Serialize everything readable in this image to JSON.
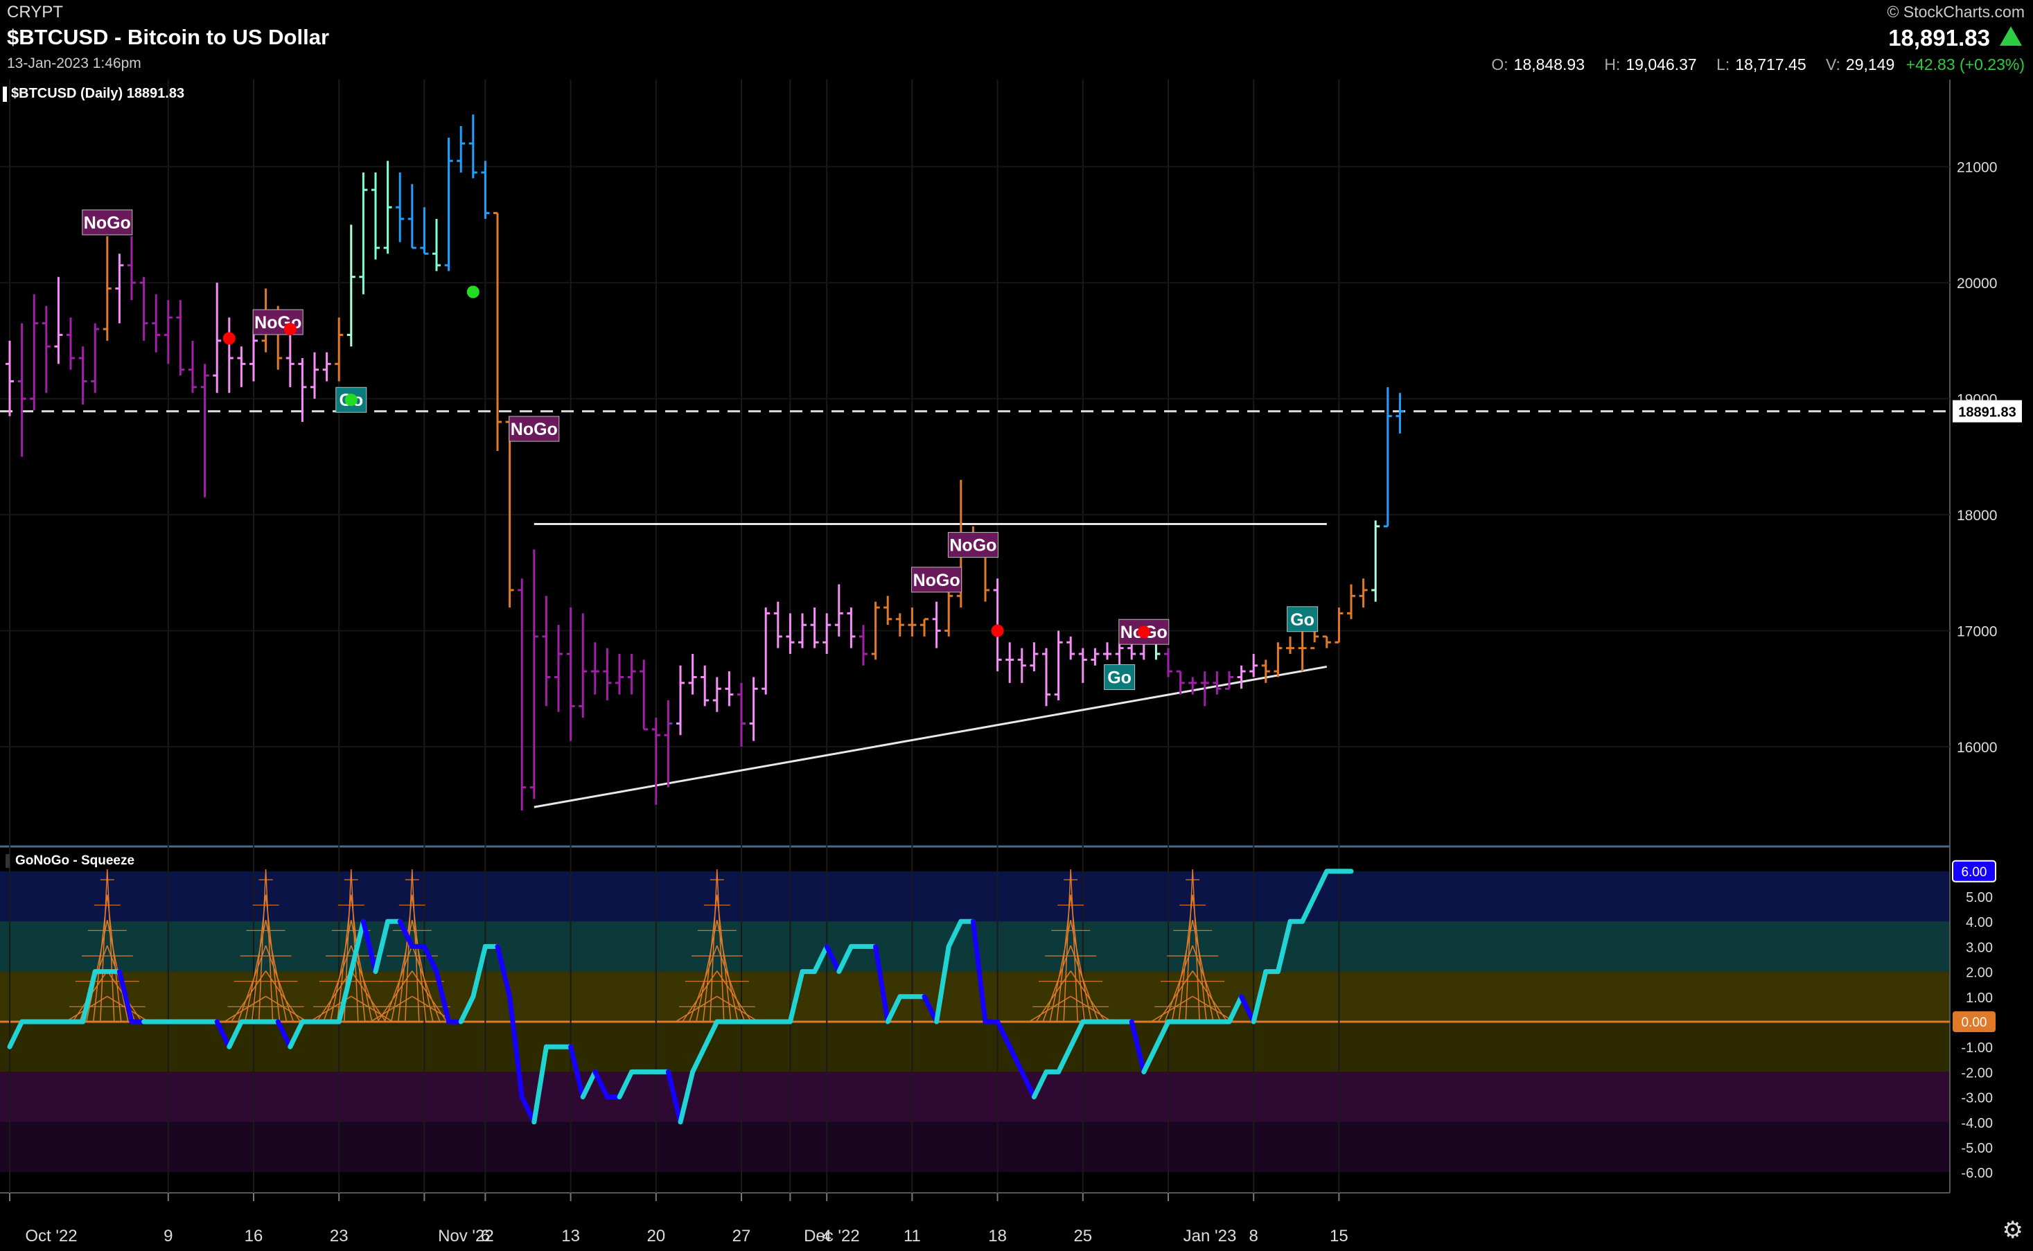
{
  "header": {
    "exchange": "CRYPT",
    "title": "$BTCUSD - Bitcoin to US Dollar",
    "datetime": "13-Jan-2023 1:46pm",
    "brand": "© StockCharts.com",
    "last_price": "18,891.83",
    "open_label": "O:",
    "open": "18,848.93",
    "high_label": "H:",
    "high": "19,046.37",
    "low_label": "L:",
    "low": "18,717.45",
    "volume_label": "V:",
    "volume": "29,149",
    "change": "+42.83 (+0.23%)"
  },
  "main_panel": {
    "label": "$BTCUSD (Daily) 18891.83",
    "price_tag": "18891.83"
  },
  "indicator_panel": {
    "label": "GoNoGo - Squeeze",
    "value_tag": "6.00",
    "zero_tag": "0.00"
  },
  "colors": {
    "go_strong": "#1fa0ff",
    "go": "#7dffd4",
    "go_weak": "#aaffd8",
    "neutral": "#e07a28",
    "nogo_weak": "#f68ef8",
    "nogo": "#a020a8",
    "osc_go": "#22d3d3",
    "osc_nogo": "#1500ff",
    "squeeze": "#e07a28"
  },
  "chart_data": [
    {
      "type": "ohlc",
      "title": "$BTCUSD (Daily) 18891.83",
      "ylim": [
        15200,
        21750
      ],
      "y_ticks": [
        16000,
        17000,
        18000,
        19000,
        20000,
        21000
      ],
      "x_tick_labels": [
        {
          "i": 0,
          "label": "Oct '22"
        },
        {
          "i": 13,
          "label": "9"
        },
        {
          "i": 20,
          "label": "16"
        },
        {
          "i": 27,
          "label": "23"
        },
        {
          "i": 34,
          "label": "Nov '22"
        },
        {
          "i": 39,
          "label": "6"
        },
        {
          "i": 46,
          "label": "13"
        },
        {
          "i": 53,
          "label": "20"
        },
        {
          "i": 60,
          "label": "27"
        },
        {
          "i": 64,
          "label": "Dec '22"
        },
        {
          "i": 67,
          "label": "4"
        },
        {
          "i": 74,
          "label": "11"
        },
        {
          "i": 81,
          "label": "18"
        },
        {
          "i": 88,
          "label": "25"
        },
        {
          "i": 95,
          "label": "Jan '23"
        },
        {
          "i": 102,
          "label": "8"
        },
        {
          "i": 109,
          "label": "15"
        }
      ],
      "reference_line": 18891.83,
      "resistance_line": {
        "from_i": 43,
        "to_i": 108,
        "value": 17920
      },
      "support_line": {
        "from": [
          43,
          15480
        ],
        "to": [
          108,
          16690
        ]
      },
      "ohlc": [
        [
          19300,
          19500,
          18850,
          19150,
          "nogo_weak"
        ],
        [
          19150,
          19650,
          18500,
          19000,
          "nogo"
        ],
        [
          19000,
          19900,
          18900,
          19650,
          "nogo"
        ],
        [
          19650,
          19800,
          19050,
          19450,
          "nogo"
        ],
        [
          19450,
          20050,
          19300,
          19550,
          "nogo_weak"
        ],
        [
          19550,
          19700,
          19250,
          19350,
          "nogo"
        ],
        [
          19350,
          19450,
          18950,
          19150,
          "nogo"
        ],
        [
          19150,
          19650,
          19050,
          19600,
          "nogo"
        ],
        [
          19600,
          20400,
          19500,
          19950,
          "neutral"
        ],
        [
          19950,
          20250,
          19650,
          20150,
          "nogo_weak"
        ],
        [
          20150,
          20400,
          19850,
          20000,
          "nogo"
        ],
        [
          20000,
          20050,
          19500,
          19650,
          "nogo"
        ],
        [
          19650,
          19900,
          19400,
          19550,
          "nogo"
        ],
        [
          19550,
          19850,
          19300,
          19700,
          "nogo"
        ],
        [
          19700,
          19850,
          19200,
          19250,
          "nogo"
        ],
        [
          19250,
          19500,
          19050,
          19100,
          "nogo"
        ],
        [
          19100,
          19300,
          18150,
          19200,
          "nogo"
        ],
        [
          19200,
          20000,
          19050,
          19500,
          "nogo_weak"
        ],
        [
          19500,
          19700,
          19050,
          19350,
          "nogo_weak"
        ],
        [
          19350,
          19450,
          19100,
          19300,
          "nogo_weak"
        ],
        [
          19300,
          19600,
          19150,
          19500,
          "nogo_weak"
        ],
        [
          19500,
          19950,
          19400,
          19750,
          "neutral"
        ],
        [
          19750,
          19800,
          19250,
          19350,
          "neutral"
        ],
        [
          19350,
          19550,
          19100,
          19300,
          "nogo_weak"
        ],
        [
          19300,
          19350,
          18800,
          19100,
          "nogo_weak"
        ],
        [
          19100,
          19400,
          19000,
          19250,
          "nogo_weak"
        ],
        [
          19250,
          19400,
          19150,
          19300,
          "nogo_weak"
        ],
        [
          19300,
          19700,
          19150,
          19550,
          "neutral"
        ],
        [
          19550,
          20500,
          19450,
          20050,
          "go_weak"
        ],
        [
          20050,
          20950,
          19900,
          20800,
          "go"
        ],
        [
          20800,
          20950,
          20200,
          20300,
          "go"
        ],
        [
          20300,
          21050,
          20250,
          20650,
          "go"
        ],
        [
          20650,
          20950,
          20350,
          20550,
          "go_strong"
        ],
        [
          20550,
          20850,
          20300,
          20300,
          "go_strong"
        ],
        [
          20300,
          20650,
          20250,
          20250,
          "go_strong"
        ],
        [
          20250,
          20550,
          20100,
          20150,
          "go"
        ],
        [
          20150,
          21250,
          20100,
          21050,
          "go_strong"
        ],
        [
          21050,
          21350,
          20950,
          21200,
          "go_strong"
        ],
        [
          21200,
          21450,
          20900,
          20950,
          "go_strong"
        ],
        [
          20950,
          21050,
          20550,
          20600,
          "go_strong"
        ],
        [
          20600,
          20600,
          18550,
          18800,
          "neutral"
        ],
        [
          18800,
          18850,
          17200,
          17350,
          "neutral"
        ],
        [
          17350,
          17450,
          15450,
          15650,
          "nogo"
        ],
        [
          15650,
          17700,
          15550,
          16950,
          "nogo"
        ],
        [
          16950,
          17300,
          16350,
          16600,
          "nogo"
        ],
        [
          16600,
          17050,
          16300,
          16800,
          "nogo"
        ],
        [
          16800,
          17200,
          16050,
          16350,
          "nogo"
        ],
        [
          16350,
          17150,
          16250,
          16650,
          "nogo"
        ],
        [
          16650,
          16900,
          16450,
          16650,
          "nogo"
        ],
        [
          16650,
          16850,
          16400,
          16550,
          "nogo"
        ],
        [
          16550,
          16800,
          16450,
          16600,
          "nogo"
        ],
        [
          16600,
          16800,
          16450,
          16650,
          "nogo"
        ],
        [
          16650,
          16750,
          16150,
          16150,
          "nogo"
        ],
        [
          16150,
          16250,
          15500,
          16100,
          "nogo"
        ],
        [
          16100,
          16400,
          15650,
          16200,
          "nogo"
        ],
        [
          16200,
          16700,
          16100,
          16550,
          "nogo_weak"
        ],
        [
          16550,
          16800,
          16450,
          16600,
          "nogo_weak"
        ],
        [
          16600,
          16700,
          16350,
          16400,
          "nogo_weak"
        ],
        [
          16400,
          16600,
          16300,
          16500,
          "nogo_weak"
        ],
        [
          16500,
          16650,
          16350,
          16450,
          "nogo_weak"
        ],
        [
          16450,
          16550,
          16000,
          16200,
          "nogo"
        ],
        [
          16200,
          16600,
          16050,
          16500,
          "nogo_weak"
        ],
        [
          16500,
          17200,
          16450,
          17150,
          "nogo_weak"
        ],
        [
          17150,
          17250,
          16850,
          16950,
          "nogo_weak"
        ],
        [
          16950,
          17150,
          16800,
          16900,
          "nogo_weak"
        ],
        [
          16900,
          17150,
          16850,
          17050,
          "nogo_weak"
        ],
        [
          17050,
          17200,
          16850,
          16900,
          "nogo_weak"
        ],
        [
          16900,
          17150,
          16800,
          17050,
          "nogo_weak"
        ],
        [
          17050,
          17400,
          16950,
          17150,
          "nogo_weak"
        ],
        [
          17150,
          17200,
          16850,
          16950,
          "nogo_weak"
        ],
        [
          16950,
          17050,
          16700,
          16800,
          "nogo"
        ],
        [
          16800,
          17250,
          16750,
          17200,
          "neutral"
        ],
        [
          17200,
          17300,
          17050,
          17100,
          "neutral"
        ],
        [
          17100,
          17150,
          16950,
          17050,
          "neutral"
        ],
        [
          17050,
          17200,
          16950,
          17050,
          "neutral"
        ],
        [
          17050,
          17100,
          16950,
          17100,
          "neutral"
        ],
        [
          17100,
          17250,
          16850,
          17000,
          "nogo_weak"
        ],
        [
          17000,
          17500,
          16950,
          17300,
          "neutral"
        ],
        [
          17300,
          18300,
          17200,
          17800,
          "neutral"
        ],
        [
          17800,
          17900,
          17650,
          17800,
          "neutral"
        ],
        [
          17800,
          17850,
          17250,
          17350,
          "neutral"
        ],
        [
          17350,
          17450,
          16650,
          16750,
          "nogo_weak"
        ],
        [
          16750,
          16900,
          16550,
          16750,
          "nogo_weak"
        ],
        [
          16750,
          16850,
          16550,
          16700,
          "nogo_weak"
        ],
        [
          16700,
          16900,
          16650,
          16800,
          "nogo_weak"
        ],
        [
          16800,
          16850,
          16350,
          16450,
          "nogo_weak"
        ],
        [
          16450,
          17000,
          16400,
          16900,
          "nogo_weak"
        ],
        [
          16900,
          16950,
          16750,
          16800,
          "nogo_weak"
        ],
        [
          16800,
          16850,
          16550,
          16750,
          "nogo_weak"
        ],
        [
          16750,
          16850,
          16700,
          16800,
          "nogo_weak"
        ],
        [
          16800,
          16900,
          16750,
          16800,
          "nogo_weak"
        ],
        [
          16800,
          16900,
          16700,
          16850,
          "nogo_weak"
        ],
        [
          16850,
          16900,
          16750,
          16800,
          "nogo_weak"
        ],
        [
          16800,
          16950,
          16750,
          16900,
          "nogo_weak"
        ],
        [
          16900,
          16950,
          16750,
          16800,
          "go_weak"
        ],
        [
          16800,
          16850,
          16600,
          16650,
          "nogo"
        ],
        [
          16650,
          16650,
          16450,
          16550,
          "nogo"
        ],
        [
          16550,
          16600,
          16450,
          16550,
          "nogo"
        ],
        [
          16550,
          16650,
          16350,
          16550,
          "nogo"
        ],
        [
          16550,
          16650,
          16450,
          16500,
          "nogo"
        ],
        [
          16500,
          16650,
          16500,
          16600,
          "nogo"
        ],
        [
          16600,
          16700,
          16500,
          16650,
          "nogo_weak"
        ],
        [
          16650,
          16800,
          16600,
          16700,
          "nogo_weak"
        ],
        [
          16700,
          16750,
          16550,
          16650,
          "neutral"
        ],
        [
          16650,
          16900,
          16600,
          16850,
          "neutral"
        ],
        [
          16850,
          16950,
          16800,
          16850,
          "neutral"
        ],
        [
          16850,
          17050,
          16650,
          16850,
          "neutral"
        ],
        [
          16850,
          17000,
          16900,
          16950,
          "neutral"
        ],
        [
          16950,
          16950,
          16850,
          16900,
          "neutral"
        ],
        [
          16900,
          17200,
          16900,
          17150,
          "neutral"
        ],
        [
          17150,
          17400,
          17100,
          17300,
          "neutral"
        ],
        [
          17300,
          17450,
          17200,
          17350,
          "neutral"
        ],
        [
          17350,
          17950,
          17250,
          17900,
          "go_weak"
        ],
        [
          17900,
          19100,
          17900,
          18850,
          "go_strong"
        ],
        [
          18850,
          19050,
          18700,
          18890,
          "go_strong"
        ]
      ],
      "annotations": [
        {
          "i": 8,
          "value": 20520,
          "text": "NoGo",
          "kind": "nogo"
        },
        {
          "i": 22,
          "value": 19660,
          "text": "NoGo",
          "kind": "nogo"
        },
        {
          "i": 28,
          "value": 18990,
          "text": "Go",
          "kind": "go"
        },
        {
          "i": 43,
          "value": 18740,
          "text": "NoGo",
          "kind": "nogo"
        },
        {
          "i": 76,
          "value": 17440,
          "text": "NoGo",
          "kind": "nogo"
        },
        {
          "i": 79,
          "value": 17740,
          "text": "NoGo",
          "kind": "nogo"
        },
        {
          "i": 91,
          "value": 16600,
          "text": "Go",
          "kind": "go"
        },
        {
          "i": 93,
          "value": 16990,
          "text": "NoGo",
          "kind": "nogo"
        },
        {
          "i": 106,
          "value": 17100,
          "text": "Go",
          "kind": "go"
        }
      ],
      "dots": [
        {
          "i": 18,
          "value": 19520,
          "color": "#ff0000"
        },
        {
          "i": 23,
          "value": 19600,
          "color": "#ff0000"
        },
        {
          "i": 38,
          "value": 19920,
          "color": "#22dd22"
        },
        {
          "i": 28,
          "value": 18990,
          "color": "#22dd22"
        },
        {
          "i": 81,
          "value": 17000,
          "color": "#ff0000"
        },
        {
          "i": 93,
          "value": 16990,
          "color": "#ff0000"
        }
      ]
    },
    {
      "type": "line",
      "title": "GoNoGo - Squeeze",
      "ylim": [
        -6.6,
        6.8
      ],
      "y_ticks": [
        6,
        5,
        4,
        3,
        2,
        1,
        0,
        -1,
        -2,
        -3,
        -4,
        -5,
        -6
      ],
      "bands": [
        {
          "from": 4,
          "to": 6,
          "color": "#0a1446"
        },
        {
          "from": 2,
          "to": 4,
          "color": "#0c3a3a"
        },
        {
          "from": 0,
          "to": 2,
          "color": "#3a3500"
        },
        {
          "from": -2,
          "to": 0,
          "color": "#2e2a00"
        },
        {
          "from": -4,
          "to": -2,
          "color": "#2e0a33"
        },
        {
          "from": -6,
          "to": -4,
          "color": "#1a0620"
        }
      ],
      "values": [
        -1,
        0,
        0,
        0,
        0,
        0,
        0,
        2,
        2,
        2,
        0,
        0,
        0,
        0,
        0,
        0,
        0,
        0,
        -1,
        0,
        0,
        0,
        0,
        -1,
        0,
        0,
        0,
        0,
        2,
        4,
        2,
        4,
        4,
        3,
        3,
        2,
        0,
        0,
        1,
        3,
        3,
        1,
        -3,
        -4,
        -1,
        -1,
        -1,
        -3,
        -2,
        -3,
        -3,
        -2,
        -2,
        -2,
        -2,
        -4,
        -2,
        -1,
        0,
        0,
        0,
        0,
        0,
        0,
        0,
        2,
        2,
        3,
        2,
        3,
        3,
        3,
        0,
        1,
        1,
        1,
        0,
        3,
        4,
        4,
        0,
        0,
        -1,
        -2,
        -3,
        -2,
        -2,
        -1,
        0,
        0,
        0,
        0,
        0,
        -2,
        -1,
        0,
        0,
        0,
        0,
        0,
        0,
        1,
        0,
        2,
        2,
        4,
        4,
        5,
        6,
        6,
        6
      ],
      "series_color_break": "blue-when-falling"
    }
  ]
}
